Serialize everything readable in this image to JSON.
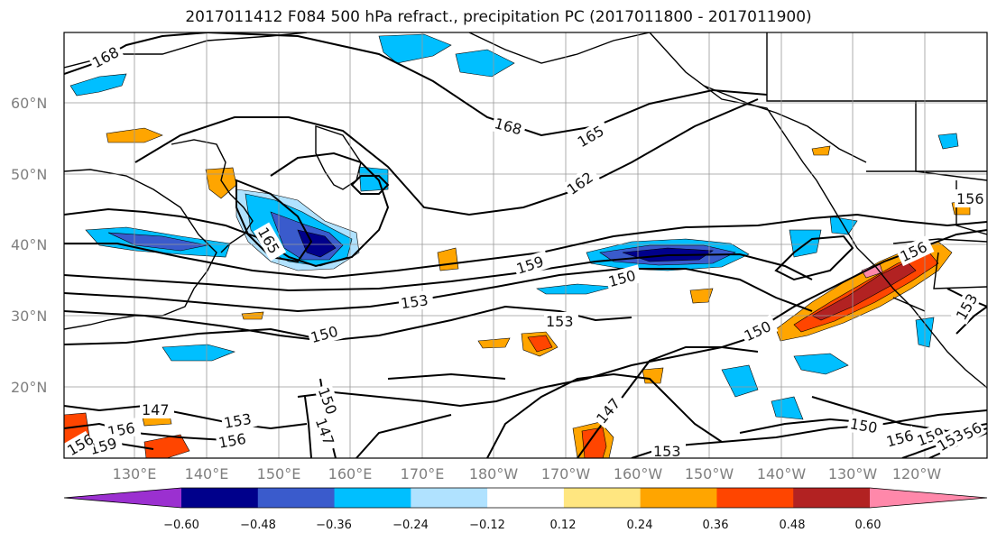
{
  "title": "2017011412 F084 500 hPa refract., precipitation PC (2017011800 - 2017011900)",
  "lat_labels": [
    "60°N",
    "50°N",
    "40°N",
    "30°N",
    "20°N"
  ],
  "lon_labels": [
    "130°E",
    "140°E",
    "150°E",
    "160°E",
    "170°E",
    "180°W",
    "170°W",
    "160°W",
    "150°W",
    "140°W",
    "130°W",
    "120°W"
  ],
  "contour_labels": [
    "168",
    "168",
    "165",
    "162",
    "165",
    "159",
    "153",
    "150",
    "150",
    "153",
    "150",
    "150",
    "147",
    "153",
    "156",
    "147",
    "156",
    "159",
    "147",
    "153",
    "150",
    "156",
    "156",
    "153",
    "156",
    "159",
    "156",
    "153",
    "156"
  ],
  "colorbar": {
    "ticks": [
      "−0.60",
      "−0.48",
      "−0.36",
      "−0.24",
      "−0.12",
      "0.12",
      "0.24",
      "0.36",
      "0.48",
      "0.60"
    ],
    "colors": [
      "#9b30d0",
      "#00008b",
      "#3a5bcc",
      "#00bfff",
      "#b0e2ff",
      "#ffffff",
      "#ffe680",
      "#ffa500",
      "#ff4500",
      "#b22222",
      "#ff88aa"
    ]
  }
}
